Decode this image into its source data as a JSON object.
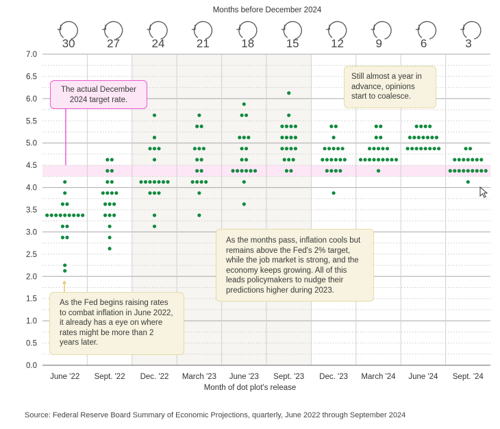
{
  "chart_data": {
    "type": "scatter",
    "subtype": "dot-plot",
    "top_title": "Months before December 2024",
    "xlabel": "Month of dot plot's release",
    "ylabel": "",
    "ylim": [
      0,
      7.0
    ],
    "yticks": [
      "0.0",
      "0.5",
      "1.0",
      "1.5",
      "2.0",
      "2.5",
      "3.0",
      "3.5",
      "4.0",
      "4.5",
      "5.0",
      "5.5",
      "6.0",
      "6.5",
      "7.0"
    ],
    "grid": true,
    "target_band": {
      "low": 4.25,
      "high": 4.5,
      "color": "#fde6f6"
    },
    "dot_color": "#128a3e",
    "categories": [
      "June '22",
      "Sept. '22",
      "Dec. '22",
      "March '23",
      "June '23",
      "Sept. '23",
      "Dec. '23",
      "March '24",
      "June '24",
      "Sept. '24"
    ],
    "months_before": [
      "30",
      "27",
      "24",
      "21",
      "18",
      "15",
      "12",
      "9",
      "6",
      "3"
    ],
    "shaded_columns": [
      2,
      3,
      4,
      5
    ],
    "series": [
      {
        "name": "June '22",
        "dots": [
          [
            4.125,
            1
          ],
          [
            3.875,
            1
          ],
          [
            3.625,
            2
          ],
          [
            3.375,
            9
          ],
          [
            3.125,
            2
          ],
          [
            2.875,
            2
          ],
          [
            2.25,
            1
          ],
          [
            2.125,
            1
          ]
        ]
      },
      {
        "name": "Sept. '22",
        "dots": [
          [
            4.625,
            2
          ],
          [
            4.375,
            2
          ],
          [
            4.125,
            2
          ],
          [
            3.875,
            4
          ],
          [
            3.625,
            3
          ],
          [
            3.375,
            3
          ],
          [
            3.125,
            1
          ],
          [
            2.875,
            1
          ],
          [
            2.625,
            1
          ]
        ]
      },
      {
        "name": "Dec. '22",
        "dots": [
          [
            5.625,
            1
          ],
          [
            5.125,
            1
          ],
          [
            4.875,
            3
          ],
          [
            4.625,
            1
          ],
          [
            4.125,
            7
          ],
          [
            3.875,
            3
          ],
          [
            3.375,
            1
          ],
          [
            3.125,
            1
          ]
        ]
      },
      {
        "name": "March '23",
        "dots": [
          [
            5.625,
            1
          ],
          [
            5.375,
            2
          ],
          [
            4.875,
            3
          ],
          [
            4.625,
            2
          ],
          [
            4.375,
            2
          ],
          [
            4.125,
            4
          ],
          [
            3.875,
            1
          ],
          [
            3.375,
            1
          ]
        ]
      },
      {
        "name": "June '23",
        "dots": [
          [
            5.875,
            1
          ],
          [
            5.625,
            2
          ],
          [
            5.125,
            3
          ],
          [
            4.875,
            2
          ],
          [
            4.625,
            2
          ],
          [
            4.375,
            6
          ],
          [
            4.125,
            1
          ],
          [
            3.625,
            1
          ]
        ]
      },
      {
        "name": "Sept. '23",
        "dots": [
          [
            6.125,
            1
          ],
          [
            5.625,
            1
          ],
          [
            5.375,
            4
          ],
          [
            5.125,
            4
          ],
          [
            4.875,
            4
          ],
          [
            4.625,
            3
          ],
          [
            4.375,
            2
          ]
        ]
      },
      {
        "name": "Dec. '23",
        "dots": [
          [
            5.375,
            2
          ],
          [
            5.125,
            1
          ],
          [
            4.875,
            5
          ],
          [
            4.625,
            6
          ],
          [
            4.375,
            4
          ],
          [
            3.875,
            1
          ]
        ]
      },
      {
        "name": "March '24",
        "dots": [
          [
            5.375,
            2
          ],
          [
            5.125,
            2
          ],
          [
            4.875,
            5
          ],
          [
            4.625,
            9
          ],
          [
            4.375,
            1
          ]
        ]
      },
      {
        "name": "June '24",
        "dots": [
          [
            5.375,
            4
          ],
          [
            5.125,
            7
          ],
          [
            4.875,
            8
          ]
        ]
      },
      {
        "name": "Sept. '24",
        "dots": [
          [
            4.875,
            2
          ],
          [
            4.625,
            7
          ],
          [
            4.375,
            9
          ],
          [
            4.125,
            1
          ]
        ]
      }
    ],
    "annotations": [
      {
        "id": "target",
        "text": "The actual December 2024 target rate."
      },
      {
        "id": "coalesce",
        "text": "Still almost a year in advance, opinions start to coalesce."
      },
      {
        "id": "months-pass",
        "text": "As the months pass, inflation cools but remains above the Fed's 2% target, while the job market is strong, and the economy keeps growing. All of this leads policymakers to nudge their predictions higher during 2023."
      },
      {
        "id": "fed-begins",
        "text": "As the Fed begins raising rates to combat inflation in June 2022, it already has a eye on where rates might be more than 2 years later."
      }
    ]
  },
  "source": "Source: Federal Reserve Board Summary of Economic Projections, quarterly, June 2022 through September 2024"
}
